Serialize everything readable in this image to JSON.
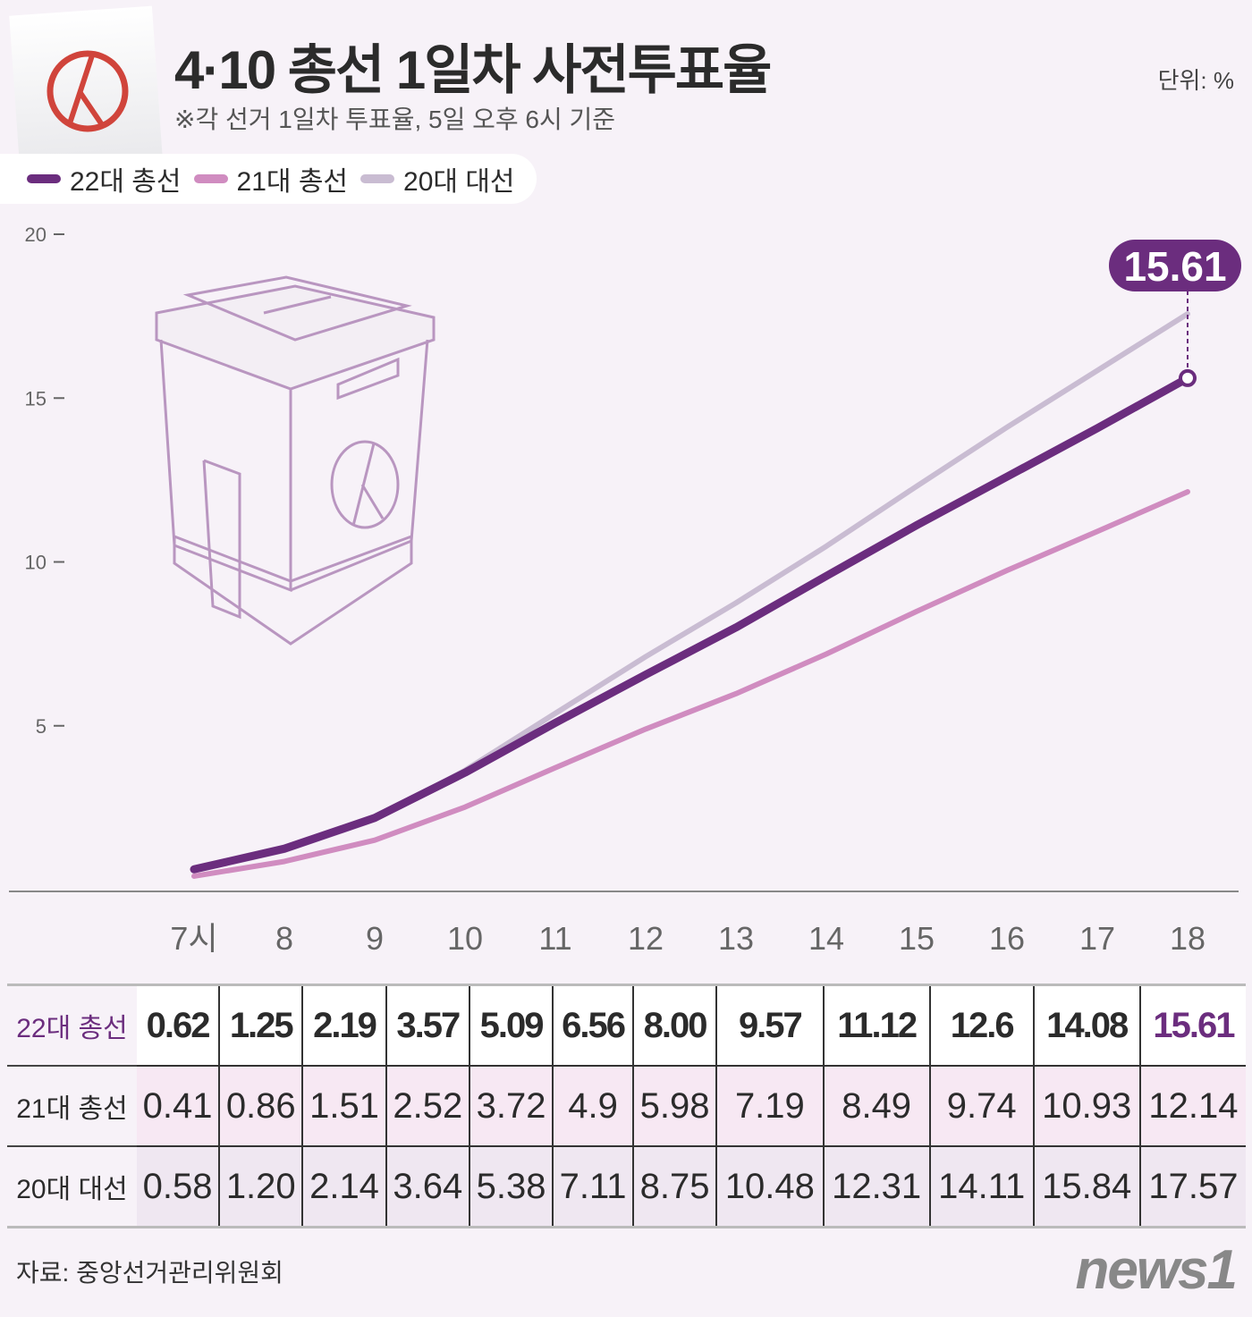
{
  "header": {
    "title": "4·10 총선 1일차 사전투표율",
    "subtitle": "※각 선거 1일차 투표율, 5일 오후 6시 기준",
    "unit": "단위: %"
  },
  "footer": {
    "source": "자료: 중앙선거관리위원회",
    "logo": "news1"
  },
  "chart_data": {
    "type": "line",
    "categories": [
      "7시",
      "8",
      "9",
      "10",
      "11",
      "12",
      "13",
      "14",
      "15",
      "16",
      "17",
      "18"
    ],
    "ylim": [
      0,
      20
    ],
    "yticks": [
      "20",
      "15",
      "10",
      "5"
    ],
    "ytick_values": [
      20,
      15,
      10,
      5
    ],
    "legend_position": "top-left",
    "grid": false,
    "series": [
      {
        "name": "22대 총선",
        "color": "#6b2d7e",
        "values": [
          0.62,
          1.25,
          2.19,
          3.57,
          5.09,
          6.56,
          8.0,
          9.57,
          11.12,
          12.6,
          14.08,
          15.61
        ],
        "labels": [
          "0.62",
          "1.25",
          "2.19",
          "3.57",
          "5.09",
          "6.56",
          "8.00",
          "9.57",
          "11.12",
          "12.6",
          "14.08",
          "15.61"
        ]
      },
      {
        "name": "21대 총선",
        "color": "#d08cc0",
        "values": [
          0.41,
          0.86,
          1.51,
          2.52,
          3.72,
          4.9,
          5.98,
          7.19,
          8.49,
          9.74,
          10.93,
          12.14
        ],
        "labels": [
          "0.41",
          "0.86",
          "1.51",
          "2.52",
          "3.72",
          "4.9",
          "5.98",
          "7.19",
          "8.49",
          "9.74",
          "10.93",
          "12.14"
        ]
      },
      {
        "name": "20대 대선",
        "color": "#c9bcd2",
        "values": [
          0.58,
          1.2,
          2.14,
          3.64,
          5.38,
          7.11,
          8.75,
          10.48,
          12.31,
          14.11,
          15.84,
          17.57
        ],
        "labels": [
          "0.58",
          "1.20",
          "2.14",
          "3.64",
          "5.38",
          "7.11",
          "8.75",
          "10.48",
          "12.31",
          "14.11",
          "15.84",
          "17.57"
        ]
      }
    ],
    "annotation": "15.61"
  },
  "colors": {
    "accent": "#6b2d7e",
    "ballot_mark": "#d0443b",
    "background": "#f7f2f8"
  }
}
